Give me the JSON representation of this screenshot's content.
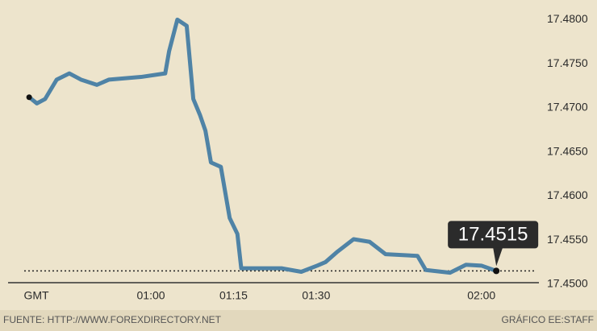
{
  "chart_data": {
    "type": "line",
    "x_label": "GMT",
    "x": [
      37.9,
      39.3,
      40.8,
      42.9,
      45.2,
      47.3,
      50.2,
      52.4,
      58.2,
      62.6,
      63.3,
      64.8,
      66.5,
      67.7,
      68.9,
      69.9,
      70.9,
      72.7,
      74.3,
      75.7,
      76.4,
      83.7,
      87.3,
      90.2,
      91.7,
      93.9,
      96.8,
      99.7,
      102.6,
      108.4,
      109.9,
      114.3,
      117.2,
      120.0,
      122.7
    ],
    "series": [
      {
        "color": "#4f83a6",
        "values": [
          17.4712,
          17.4705,
          17.471,
          17.4732,
          17.4739,
          17.4732,
          17.4726,
          17.4732,
          17.4735,
          17.4739,
          17.4764,
          17.48,
          17.4793,
          17.471,
          17.4692,
          17.4674,
          17.4638,
          17.4633,
          17.4575,
          17.4557,
          17.4518,
          17.4518,
          17.4514,
          17.4521,
          17.4525,
          17.4537,
          17.4551,
          17.4548,
          17.4534,
          17.4532,
          17.4516,
          17.4513,
          17.4522,
          17.4521,
          17.4515
        ]
      }
    ],
    "xlim": [
      37,
      130
    ],
    "xticks": [
      {
        "value": 60,
        "label": "01:00"
      },
      {
        "value": 75,
        "label": "01:15"
      },
      {
        "value": 90,
        "label": "01:30"
      },
      {
        "value": 120,
        "label": "02:00"
      }
    ],
    "ylim": [
      17.4498,
      17.4804
    ],
    "yticks": [
      {
        "value": 17.45,
        "label": "17.4500"
      },
      {
        "value": 17.455,
        "label": "17.4550"
      },
      {
        "value": 17.46,
        "label": "17.4600"
      },
      {
        "value": 17.465,
        "label": "17.4650"
      },
      {
        "value": 17.47,
        "label": "17.4700"
      },
      {
        "value": 17.475,
        "label": "17.4750"
      },
      {
        "value": 17.48,
        "label": "17.4800"
      }
    ],
    "annotation": {
      "x": 122.7,
      "value": 17.4515
    },
    "source": "FUENTE: HTTP://WWW.FOREXDIRECTORY.NET",
    "credit": "GRÁFICO EE:STAFF"
  }
}
